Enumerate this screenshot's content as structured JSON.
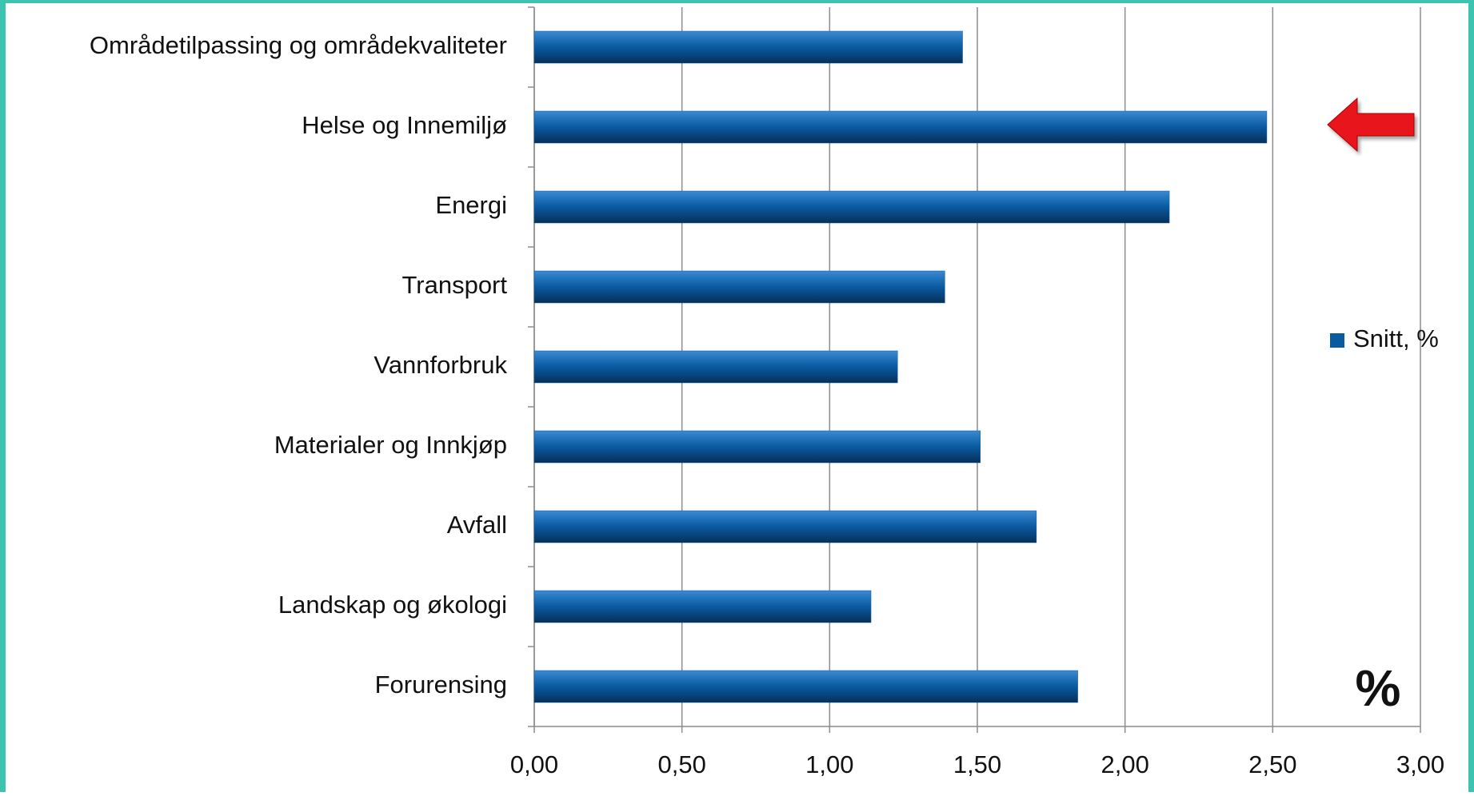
{
  "chart_data": {
    "type": "bar",
    "orientation": "horizontal",
    "categories": [
      "Områdetilpassing og områdekvaliteter",
      "Helse og Innemiljø",
      "Energi",
      "Transport",
      "Vannforbruk",
      "Materialer og Innkjøp",
      "Avfall",
      "Landskap og økologi",
      "Forurensing"
    ],
    "series": [
      {
        "name": "Snitt, %",
        "color": "#0a5aa0",
        "values": [
          1.45,
          2.48,
          2.15,
          1.39,
          1.23,
          1.51,
          1.7,
          1.14,
          1.84
        ]
      }
    ],
    "xlim": [
      0,
      3
    ],
    "xticks": [
      {
        "value": 0,
        "label": "0,00"
      },
      {
        "value": 0.5,
        "label": "0,50"
      },
      {
        "value": 1,
        "label": "1,00"
      },
      {
        "value": 1.5,
        "label": "1,50"
      },
      {
        "value": 2,
        "label": "2,00"
      },
      {
        "value": 2.5,
        "label": "2,50"
      },
      {
        "value": 3,
        "label": "3,00"
      }
    ],
    "grid": true,
    "legend": "right",
    "annotations": [
      "%"
    ]
  }
}
